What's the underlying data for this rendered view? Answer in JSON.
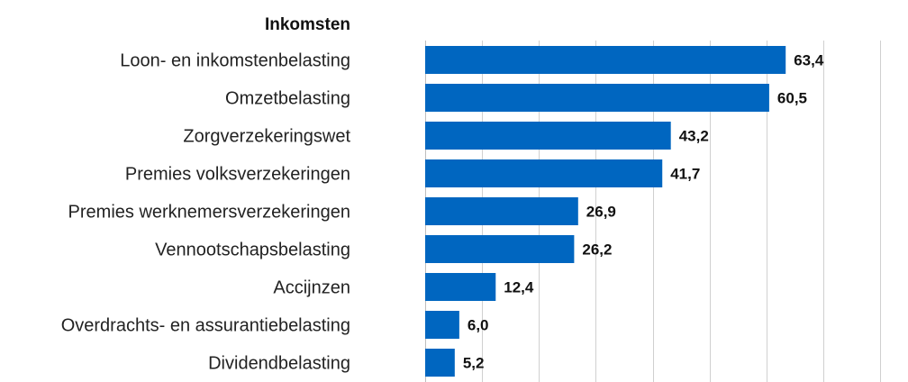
{
  "chart_data": {
    "type": "bar",
    "orientation": "horizontal",
    "title": "Inkomsten",
    "categories": [
      "Loon- en inkomstenbelasting",
      "Omzetbelasting",
      "Zorgverzekeringswet",
      "Premies volksverzekeringen",
      "Premies werknemersverzekeringen",
      "Vennootschapsbelasting",
      "Accijnzen",
      "Overdrachts- en assurantiebelasting",
      "Dividendbelasting"
    ],
    "values": [
      63.4,
      60.5,
      43.2,
      41.7,
      26.9,
      26.2,
      12.4,
      6.0,
      5.2
    ],
    "value_labels": [
      "63,4",
      "60,5",
      "43,2",
      "41,7",
      "26,9",
      "26,2",
      "12,4",
      "6,0",
      "5,2"
    ],
    "xlim": [
      0,
      80
    ],
    "grid_step": 10,
    "grid": true,
    "bar_color": "#0066c0"
  }
}
